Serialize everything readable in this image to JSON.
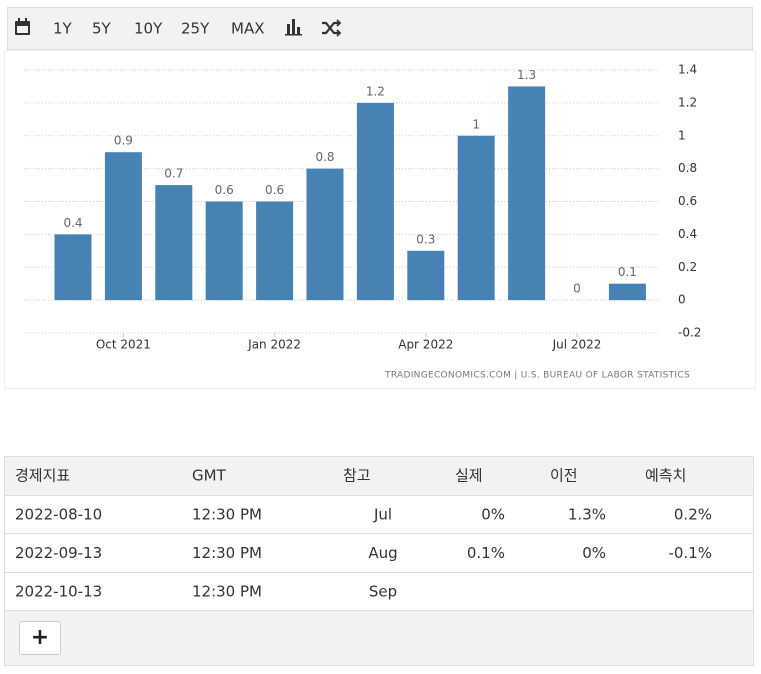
{
  "toolbar": {
    "buttons": [
      "1Y",
      "5Y",
      "10Y",
      "25Y",
      "MAX"
    ]
  },
  "chart_data": {
    "type": "bar",
    "categories": [
      null,
      "Oct 2021",
      null,
      null,
      "Jan 2022",
      null,
      null,
      "Apr 2022",
      null,
      null,
      "Jul 2022",
      null
    ],
    "values": [
      0.4,
      0.9,
      0.7,
      0.6,
      0.6,
      0.8,
      1.2,
      0.3,
      1,
      1.3,
      0,
      0.1
    ],
    "color": "#4682b4",
    "ylim": [
      -0.2,
      1.4
    ],
    "yticks": [
      -0.2,
      0,
      0.2,
      0.4,
      0.6,
      0.8,
      1,
      1.2,
      1.4
    ],
    "grid": true,
    "source": "TRADINGECONOMICS.COM  |  U.S. BUREAU OF LABOR STATISTICS"
  },
  "table": {
    "header": [
      "경제지표",
      "GMT",
      "참고",
      "실제",
      "이전",
      "예측치"
    ],
    "rows": [
      [
        "2022-08-10",
        "12:30 PM",
        "Jul",
        "0%",
        "1.3%",
        "0.2%"
      ],
      [
        "2022-09-13",
        "12:30 PM",
        "Aug",
        "0.1%",
        "0%",
        "-0.1%"
      ],
      [
        "2022-10-13",
        "12:30 PM",
        "Sep"
      ]
    ],
    "add_button": "+"
  }
}
